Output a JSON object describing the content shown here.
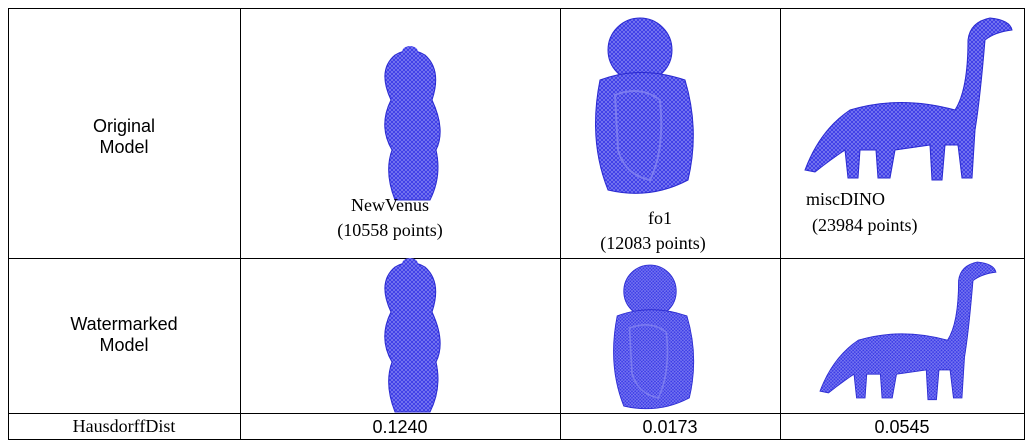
{
  "table": {
    "rows": [
      {
        "label": [
          "Original",
          "Model"
        ],
        "models": [
          {
            "name": "NewVenus",
            "points": "(10558 points)"
          },
          {
            "name": "fo1",
            "points": "(12083 points)"
          },
          {
            "name": "miscDINO",
            "points": "(23984 points)"
          }
        ]
      },
      {
        "label": [
          "Watermarked",
          "Model"
        ]
      },
      {
        "label": [
          "HausdorffDist"
        ],
        "values": [
          "0.1240",
          "0.0173",
          "0.0545"
        ]
      }
    ]
  }
}
